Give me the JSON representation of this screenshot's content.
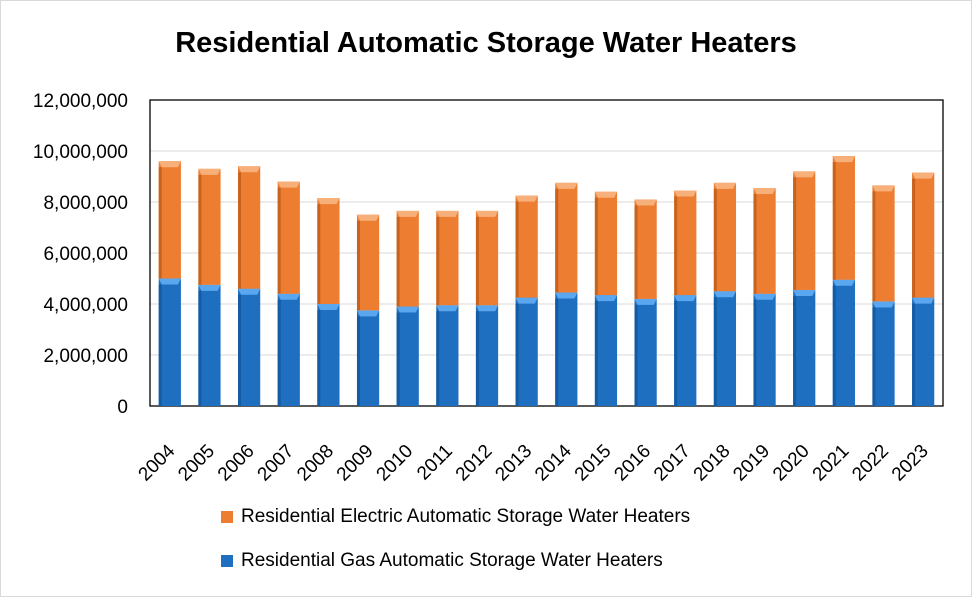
{
  "chart_data": {
    "type": "bar",
    "stacked": true,
    "title": "Residential Automatic Storage Water Heaters",
    "xlabel": "",
    "ylabel": "",
    "ylim": [
      0,
      12000000
    ],
    "y_ticks": [
      "0",
      "2,000,000",
      "4,000,000",
      "6,000,000",
      "8,000,000",
      "10,000,000",
      "12,000,000"
    ],
    "y_tick_values": [
      0,
      2000000,
      4000000,
      6000000,
      8000000,
      10000000,
      12000000
    ],
    "grid": true,
    "legend_position": "bottom",
    "categories": [
      "2004",
      "2005",
      "2006",
      "2007",
      "2008",
      "2009",
      "2010",
      "2011",
      "2012",
      "2013",
      "2014",
      "2015",
      "2016",
      "2017",
      "2018",
      "2019",
      "2020",
      "2021",
      "2022",
      "2023"
    ],
    "series": [
      {
        "name": "Residential Gas Automatic Storage Water Heaters",
        "color": "#1f6fc0",
        "values": [
          5000000,
          4750000,
          4600000,
          4400000,
          4000000,
          3750000,
          3900000,
          3950000,
          3950000,
          4250000,
          4450000,
          4350000,
          4200000,
          4350000,
          4500000,
          4400000,
          4550000,
          4950000,
          4100000,
          4250000
        ]
      },
      {
        "name": "Residential Electric Automatic Storage Water Heaters",
        "color": "#ed7d31",
        "values": [
          4600000,
          4550000,
          4800000,
          4400000,
          4150000,
          3750000,
          3750000,
          3700000,
          3700000,
          4000000,
          4300000,
          4050000,
          3900000,
          4100000,
          4250000,
          4150000,
          4650000,
          4850000,
          4550000,
          4900000
        ]
      }
    ]
  }
}
